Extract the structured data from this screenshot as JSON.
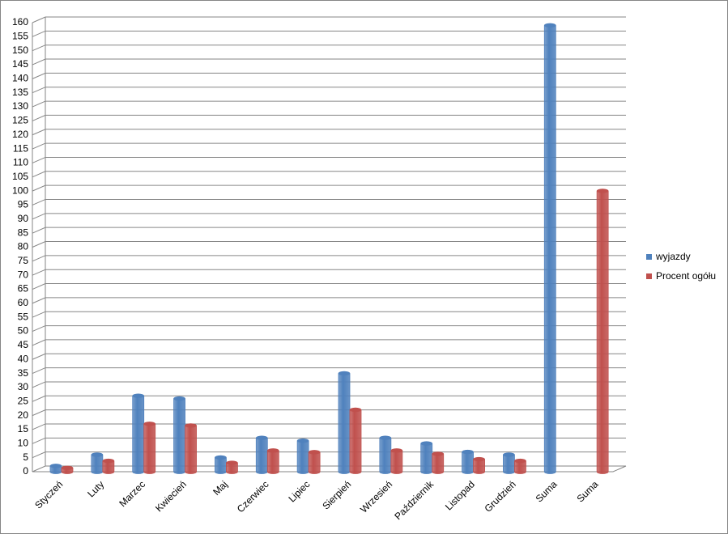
{
  "chart_data": {
    "type": "bar",
    "categories": [
      "Styczeń",
      "Luty",
      "Marzec",
      "Kwiecień",
      "Maj",
      "Czerwiec",
      "Lipiec",
      "Sierpień",
      "Wrzesień",
      "Październik",
      "Listopad",
      "Grudzień",
      "Suma",
      "Suma"
    ],
    "series": [
      {
        "name": "wyjazdy",
        "color": "#4f81bd",
        "values": [
          2,
          6,
          27,
          26,
          5,
          12,
          11,
          35,
          12,
          10,
          7,
          6,
          159,
          null
        ]
      },
      {
        "name": "Procent ogółu",
        "color": "#c0504d",
        "values": [
          1.3,
          3.8,
          17,
          16.4,
          3.1,
          7.5,
          6.9,
          22,
          7.5,
          6.3,
          4.4,
          3.8,
          null,
          100
        ]
      }
    ],
    "ylim": [
      0,
      160
    ],
    "yticks": [
      0,
      5,
      10,
      15,
      20,
      25,
      30,
      35,
      40,
      45,
      50,
      55,
      60,
      65,
      70,
      75,
      80,
      85,
      90,
      95,
      100,
      105,
      110,
      115,
      120,
      125,
      130,
      135,
      140,
      145,
      150,
      155,
      160
    ],
    "grid": true,
    "legend": "right"
  }
}
